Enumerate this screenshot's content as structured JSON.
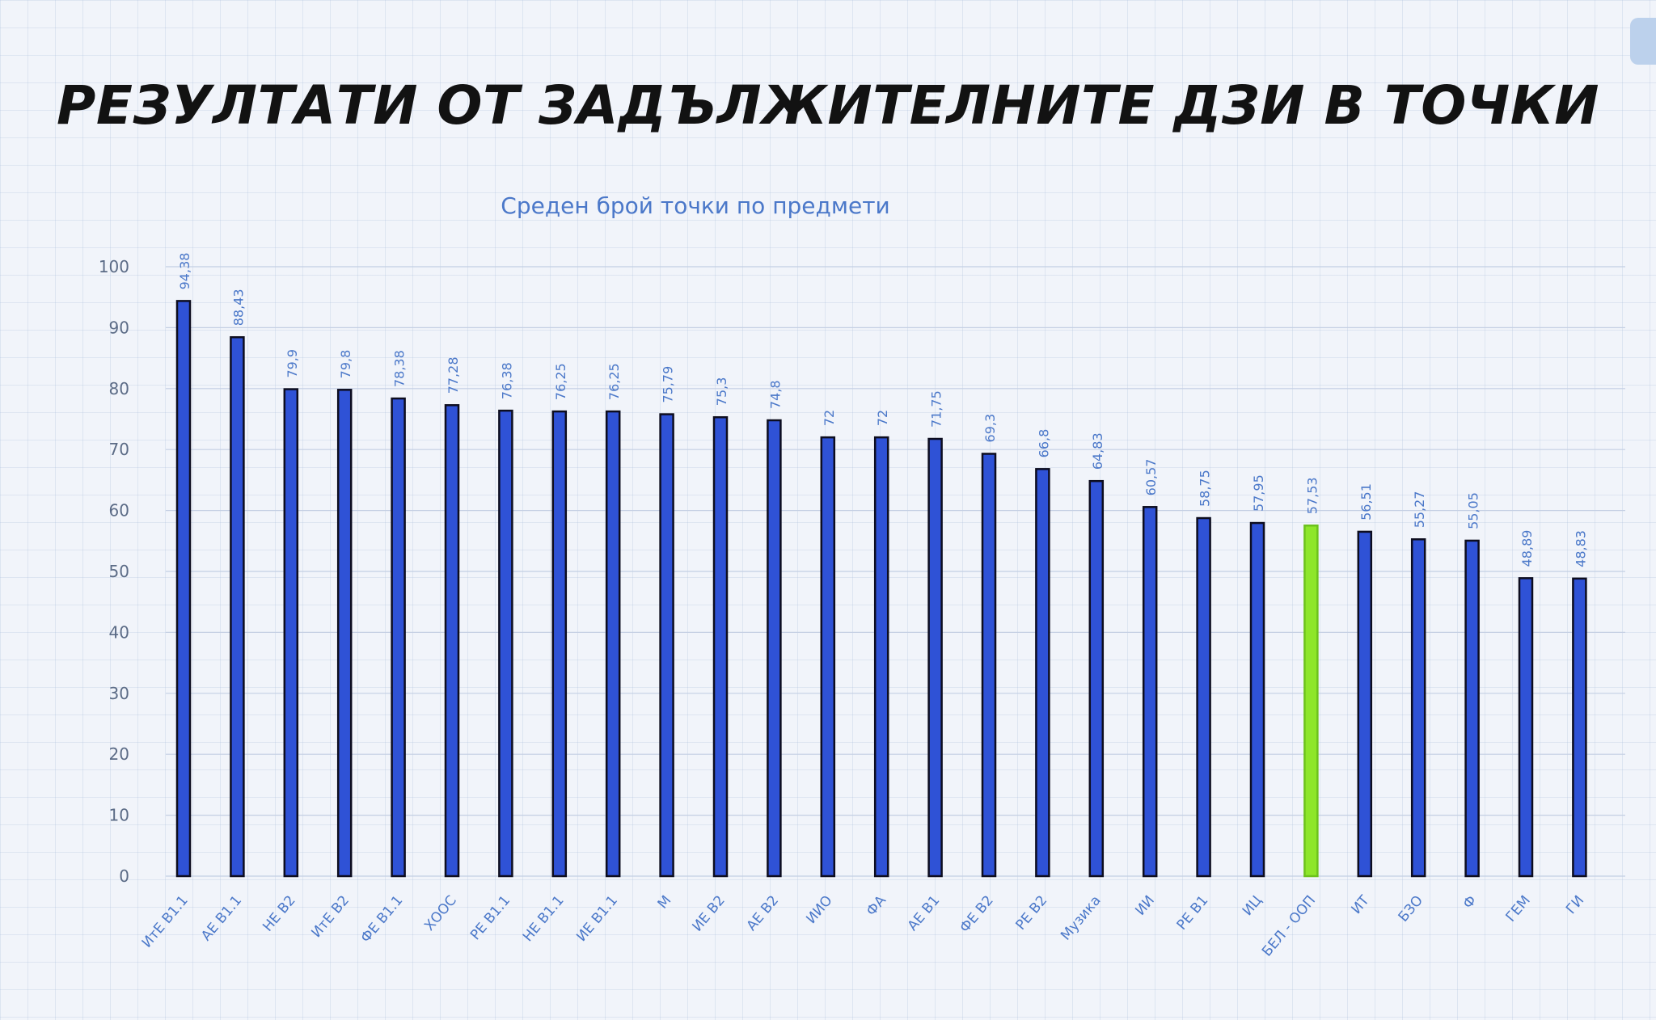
{
  "slide": {
    "title": "РЕЗУЛТАТИ ОТ ЗАДЪЛЖИТЕЛНИТЕ ДЗИ В ТОЧКИ"
  },
  "colors": {
    "bar": "#2f52d6",
    "bar_highlight": "#8ee62a",
    "bar_outline": "#0d0d1f",
    "labels": "#4b78c9",
    "axis_text": "#5b6b86"
  },
  "chart_data": {
    "type": "bar",
    "title": "Среден брой точки по предмети",
    "xlabel": "",
    "ylabel": "",
    "ylim": [
      0,
      100
    ],
    "yticks": [
      "0",
      "10",
      "20",
      "30",
      "40",
      "50",
      "60",
      "70",
      "80",
      "90",
      "100"
    ],
    "grid": true,
    "legend": "none",
    "categories": [
      "ИтЕ В1.1",
      "АЕ В1.1",
      "НЕ В2",
      "ИтЕ В2",
      "ФЕ В1.1",
      "ХООС",
      "РЕ В1.1",
      "НЕ В1.1",
      "ИЕ В1.1",
      "М",
      "ИЕ В2",
      "АЕ В2",
      "ИИО",
      "ФА",
      "АЕ В1",
      "ФЕ В2",
      "РЕ В2",
      "Музика",
      "ИИ",
      "РЕ В1",
      "ИЦ",
      "БЕЛ - ООП",
      "ИТ",
      "БЗО",
      "Ф",
      "ГЕМ",
      "ГИ"
    ],
    "values": [
      94.38,
      88.43,
      79.9,
      79.8,
      78.38,
      77.28,
      76.38,
      76.25,
      76.25,
      75.79,
      75.3,
      74.8,
      72,
      72,
      71.75,
      69.3,
      66.8,
      64.83,
      60.57,
      58.75,
      57.95,
      57.53,
      56.51,
      55.27,
      55.05,
      48.89,
      48.83
    ],
    "value_labels": [
      "94,38",
      "88,43",
      "79,9",
      "79,8",
      "78,38",
      "77,28",
      "76,38",
      "76,25",
      "76,25",
      "75,79",
      "75,3",
      "74,8",
      "72",
      "72",
      "71,75",
      "69,3",
      "66,8",
      "64,83",
      "60,57",
      "58,75",
      "57,95",
      "57,53",
      "56,51",
      "55,27",
      "55,05",
      "48,89",
      "48,83"
    ],
    "highlight_category": "БЕЛ - ООП"
  }
}
